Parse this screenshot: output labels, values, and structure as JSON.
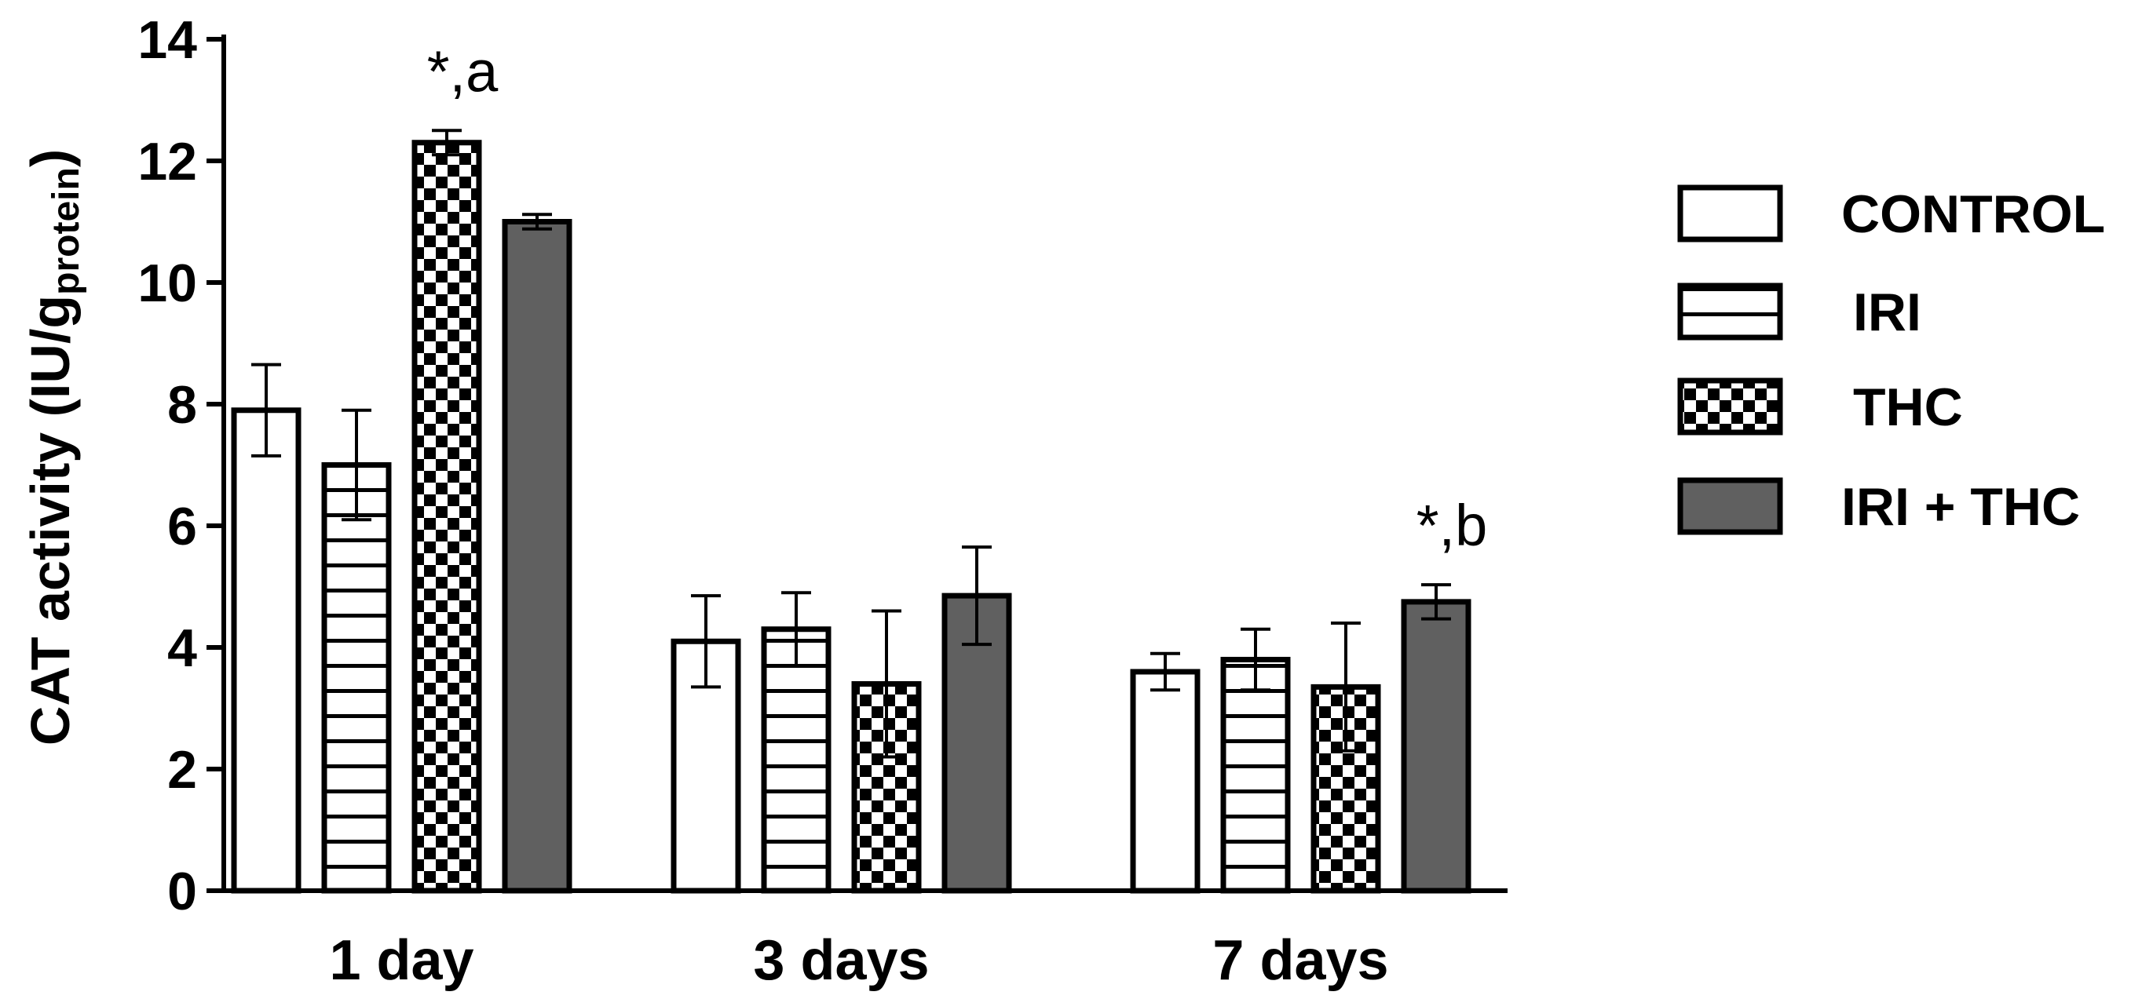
{
  "chart_data": {
    "type": "bar",
    "ylabel_main": "CAT activity (IU/g",
    "ylabel_sub": "protein",
    "ylabel_close": ")",
    "ylim": [
      0,
      14
    ],
    "yticks": [
      "0",
      "2",
      "4",
      "6",
      "8",
      "10",
      "12",
      "14"
    ],
    "categories": [
      "1 day",
      "3 days",
      "7 days"
    ],
    "series": [
      {
        "name": "CONTROL",
        "values": [
          7.9,
          4.1,
          3.6
        ],
        "errors": [
          0.75,
          0.75,
          0.3
        ],
        "fill": "white"
      },
      {
        "name": "IRI",
        "values": [
          7.0,
          4.3,
          3.8
        ],
        "errors": [
          0.9,
          0.6,
          0.5
        ],
        "fill": "hlines"
      },
      {
        "name": "THC",
        "values": [
          12.3,
          3.4,
          3.35
        ],
        "errors": [
          0.2,
          1.2,
          1.05
        ],
        "fill": "checker"
      },
      {
        "name": "IRI + THC",
        "values": [
          11.0,
          4.85,
          4.75
        ],
        "errors": [
          0.12,
          0.8,
          0.28
        ],
        "fill": "gray"
      }
    ],
    "annotations": [
      {
        "text": "*,a",
        "category": 0,
        "series": 2
      },
      {
        "text": "*,b",
        "category": 2,
        "series": 3
      }
    ],
    "legend_position": "right",
    "colors": {
      "gray": "#606060",
      "stroke": "#000000",
      "white": "#ffffff"
    }
  }
}
